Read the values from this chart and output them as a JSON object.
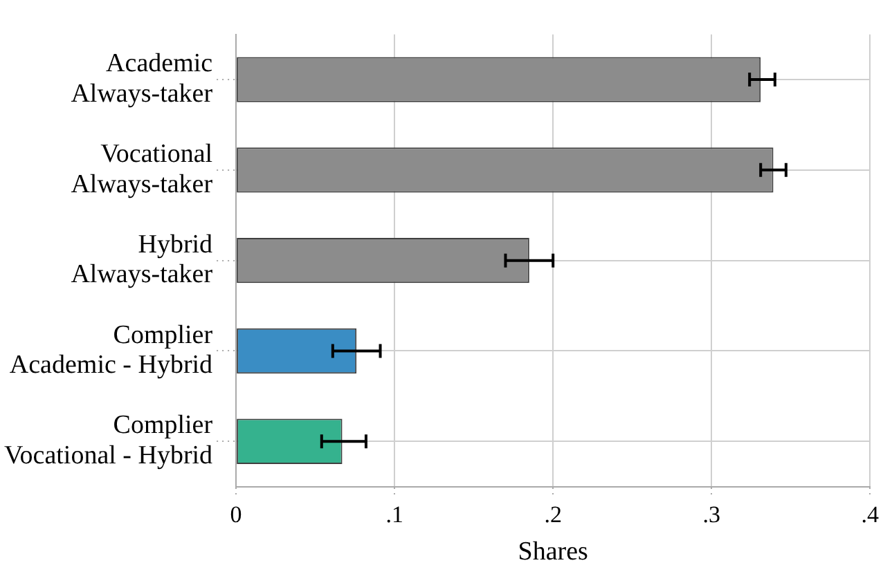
{
  "chart_data": {
    "type": "bar",
    "orientation": "horizontal",
    "xlabel": "Shares",
    "categories": [
      "Academic\nAlways-taker",
      "Vocational\nAlways-taker",
      "Hybrid\nAlways-taker",
      "Complier\nAcademic - Hybrid",
      "Complier\nVocational - Hybrid"
    ],
    "values": [
      0.331,
      0.339,
      0.185,
      0.076,
      0.067
    ],
    "colors": [
      "#8c8c8c",
      "#8c8c8c",
      "#8c8c8c",
      "#3a8dc4",
      "#35b28e"
    ],
    "errors": [
      [
        0.324,
        0.34
      ],
      [
        0.331,
        0.347
      ],
      [
        0.17,
        0.2
      ],
      [
        0.061,
        0.091
      ],
      [
        0.054,
        0.082
      ]
    ],
    "xlim": [
      0,
      0.4
    ],
    "xticks": [
      0,
      {
        "value": 0.1,
        "label": ".1"
      },
      {
        "value": 0.2,
        "label": ".2"
      },
      {
        "value": 0.3,
        "label": ".3"
      },
      {
        "value": 0.4,
        "label": ".4"
      }
    ],
    "grid": true,
    "legend": false
  }
}
